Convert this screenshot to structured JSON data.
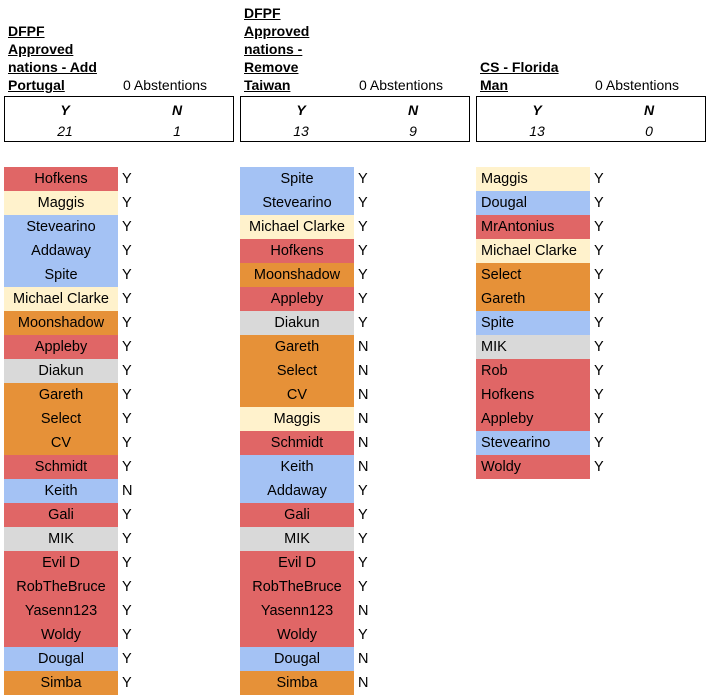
{
  "colors": {
    "red": "#e06666",
    "blue": "#a4c2f4",
    "yellow": "#fce5cd",
    "cream": "#fff2cc",
    "orange": "#e69138",
    "grey": "#d9d9d9"
  },
  "polls": [
    {
      "title_lines": [
        "DFPF",
        "Approved",
        "nations - Add",
        "Portugal"
      ],
      "abstentions": "0 Abstentions",
      "y_label": "Y",
      "n_label": "N",
      "y_count": "21",
      "n_count": "1",
      "votes": [
        {
          "name": "Hofkens",
          "vote": "Y",
          "color": "red"
        },
        {
          "name": "Maggis",
          "vote": "Y",
          "color": "cream"
        },
        {
          "name": "Stevearino",
          "vote": "Y",
          "color": "blue"
        },
        {
          "name": "Addaway",
          "vote": "Y",
          "color": "blue"
        },
        {
          "name": "Spite",
          "vote": "Y",
          "color": "blue"
        },
        {
          "name": "Michael Clarke",
          "vote": "Y",
          "color": "cream"
        },
        {
          "name": "Moonshadow",
          "vote": "Y",
          "color": "orange"
        },
        {
          "name": "Appleby",
          "vote": "Y",
          "color": "red"
        },
        {
          "name": "Diakun",
          "vote": "Y",
          "color": "grey"
        },
        {
          "name": "Gareth",
          "vote": "Y",
          "color": "orange"
        },
        {
          "name": "Select",
          "vote": "Y",
          "color": "orange"
        },
        {
          "name": "CV",
          "vote": "Y",
          "color": "orange"
        },
        {
          "name": "Schmidt",
          "vote": "Y",
          "color": "red"
        },
        {
          "name": "Keith",
          "vote": "N",
          "color": "blue"
        },
        {
          "name": "Gali",
          "vote": "Y",
          "color": "red"
        },
        {
          "name": "MIK",
          "vote": "Y",
          "color": "grey"
        },
        {
          "name": "Evil D",
          "vote": "Y",
          "color": "red"
        },
        {
          "name": "RobTheBruce",
          "vote": "Y",
          "color": "red"
        },
        {
          "name": "Yasenn123",
          "vote": "Y",
          "color": "red"
        },
        {
          "name": "Woldy",
          "vote": "Y",
          "color": "red"
        },
        {
          "name": "Dougal",
          "vote": "Y",
          "color": "blue"
        },
        {
          "name": "Simba",
          "vote": "Y",
          "color": "orange"
        }
      ]
    },
    {
      "title_lines": [
        "DFPF",
        "Approved",
        "nations -",
        "Remove",
        "Taiwan"
      ],
      "abstentions": "0 Abstentions",
      "y_label": "Y",
      "n_label": "N",
      "y_count": "13",
      "n_count": "9",
      "votes": [
        {
          "name": "Spite",
          "vote": "Y",
          "color": "blue"
        },
        {
          "name": "Stevearino",
          "vote": "Y",
          "color": "blue"
        },
        {
          "name": "Michael Clarke",
          "vote": "Y",
          "color": "cream"
        },
        {
          "name": "Hofkens",
          "vote": "Y",
          "color": "red"
        },
        {
          "name": "Moonshadow",
          "vote": "Y",
          "color": "orange"
        },
        {
          "name": "Appleby",
          "vote": "Y",
          "color": "red"
        },
        {
          "name": "Diakun",
          "vote": "Y",
          "color": "grey"
        },
        {
          "name": "Gareth",
          "vote": "N",
          "color": "orange"
        },
        {
          "name": "Select",
          "vote": "N",
          "color": "orange"
        },
        {
          "name": "CV",
          "vote": "N",
          "color": "orange"
        },
        {
          "name": "Maggis",
          "vote": "N",
          "color": "cream"
        },
        {
          "name": "Schmidt",
          "vote": "N",
          "color": "red"
        },
        {
          "name": "Keith",
          "vote": "N",
          "color": "blue"
        },
        {
          "name": "Addaway",
          "vote": "Y",
          "color": "blue"
        },
        {
          "name": "Gali",
          "vote": "Y",
          "color": "red"
        },
        {
          "name": "MIK",
          "vote": "Y",
          "color": "grey"
        },
        {
          "name": "Evil D",
          "vote": "Y",
          "color": "red"
        },
        {
          "name": "RobTheBruce",
          "vote": "Y",
          "color": "red"
        },
        {
          "name": "Yasenn123",
          "vote": "N",
          "color": "red"
        },
        {
          "name": "Woldy",
          "vote": "Y",
          "color": "red"
        },
        {
          "name": "Dougal",
          "vote": "N",
          "color": "blue"
        },
        {
          "name": "Simba",
          "vote": "N",
          "color": "orange"
        }
      ]
    },
    {
      "title_lines": [
        "CS - Florida",
        "Man"
      ],
      "abstentions": "0 Abstentions",
      "y_label": "Y",
      "n_label": "N",
      "y_count": "13",
      "n_count": "0",
      "votes": [
        {
          "name": "Maggis",
          "vote": "Y",
          "color": "cream"
        },
        {
          "name": "Dougal",
          "vote": "Y",
          "color": "blue"
        },
        {
          "name": "MrAntonius",
          "vote": "Y",
          "color": "red"
        },
        {
          "name": "Michael Clarke",
          "vote": "Y",
          "color": "cream"
        },
        {
          "name": "Select",
          "vote": "Y",
          "color": "orange"
        },
        {
          "name": "Gareth",
          "vote": "Y",
          "color": "orange"
        },
        {
          "name": "Spite",
          "vote": "Y",
          "color": "blue"
        },
        {
          "name": "MIK",
          "vote": "Y",
          "color": "grey"
        },
        {
          "name": "Rob",
          "vote": "Y",
          "color": "red"
        },
        {
          "name": "Hofkens",
          "vote": "Y",
          "color": "red"
        },
        {
          "name": "Appleby",
          "vote": "Y",
          "color": "red"
        },
        {
          "name": "Stevearino",
          "vote": "Y",
          "color": "blue"
        },
        {
          "name": "Woldy",
          "vote": "Y",
          "color": "red"
        }
      ]
    }
  ]
}
